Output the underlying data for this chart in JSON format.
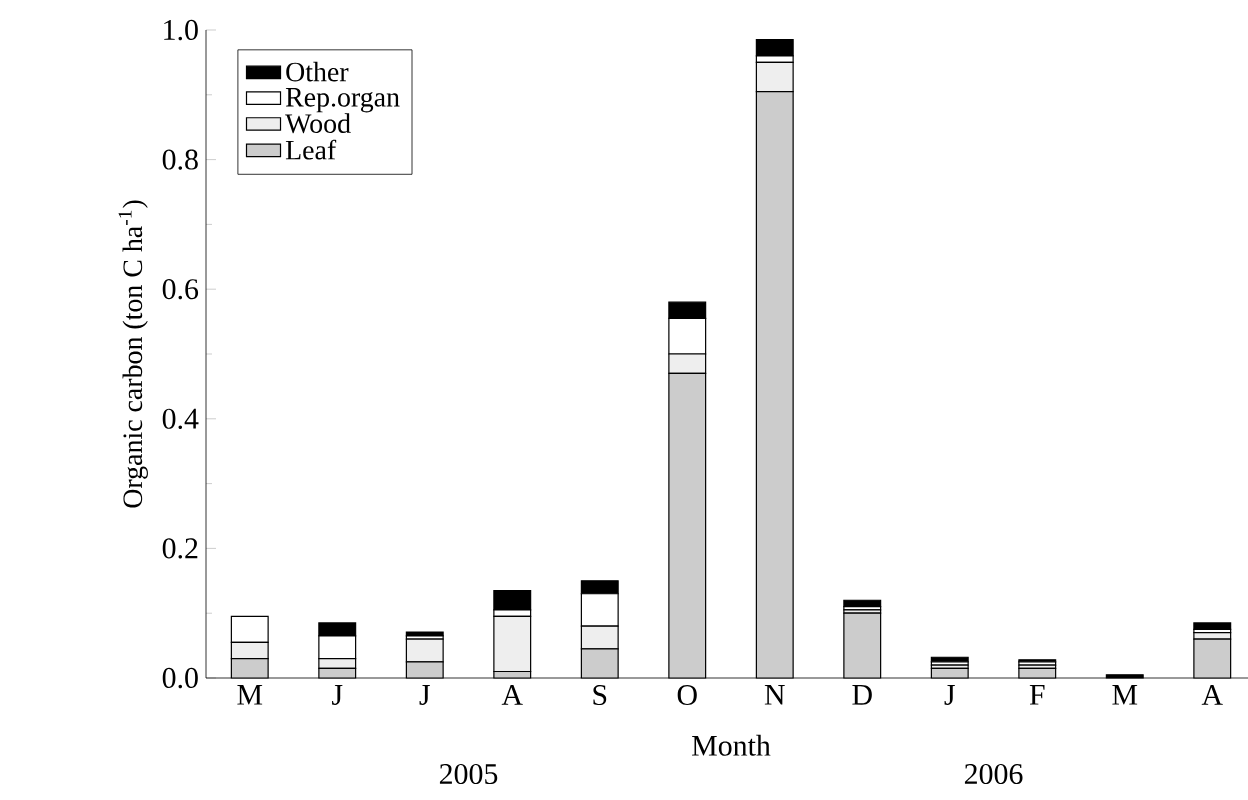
{
  "chart_data": {
    "type": "bar",
    "stacked": true,
    "xlabel": "Month",
    "ylabel": "Organic carbon (ton C ha$^{-1}$)",
    "categories": [
      "M",
      "J",
      "J",
      "A",
      "S",
      "O",
      "N",
      "D",
      "J",
      "F",
      "M",
      "A"
    ],
    "series": [
      {
        "name": "Leaf",
        "color": "#cccccc",
        "values": [
          0.03,
          0.015,
          0.025,
          0.01,
          0.045,
          0.47,
          0.905,
          0.1,
          0.015,
          0.015,
          0,
          0.06
        ]
      },
      {
        "name": "Wood",
        "color": "#eeeeee",
        "values": [
          0.025,
          0.015,
          0.035,
          0.085,
          0.035,
          0.03,
          0.045,
          0.005,
          0.005,
          0.005,
          0,
          0.01
        ]
      },
      {
        "name": "Rep.organ",
        "color": "#ffffff",
        "values": [
          0.04,
          0.035,
          0.005,
          0.01,
          0.05,
          0.055,
          0.01,
          0.005,
          0.005,
          0.005,
          0,
          0.005
        ]
      },
      {
        "name": "Other",
        "color": "#000000",
        "values": [
          0,
          0.02,
          0.006,
          0.03,
          0.02,
          0.025,
          0.025,
          0.01,
          0.007,
          0.003,
          0.005,
          0.01
        ]
      }
    ],
    "ylim": [
      0,
      1
    ],
    "yticks": [
      {
        "value": 0,
        "label": "0.0"
      },
      {
        "value": 0.2,
        "label": "0.2"
      },
      {
        "value": 0.4,
        "label": "0.4"
      },
      {
        "value": 0.6,
        "label": "0.6"
      },
      {
        "value": 0.8,
        "label": "0.8"
      },
      {
        "value": 1,
        "label": "1.0"
      }
    ],
    "legend": "top left",
    "annotations": [
      "2005",
      "2006"
    ]
  }
}
